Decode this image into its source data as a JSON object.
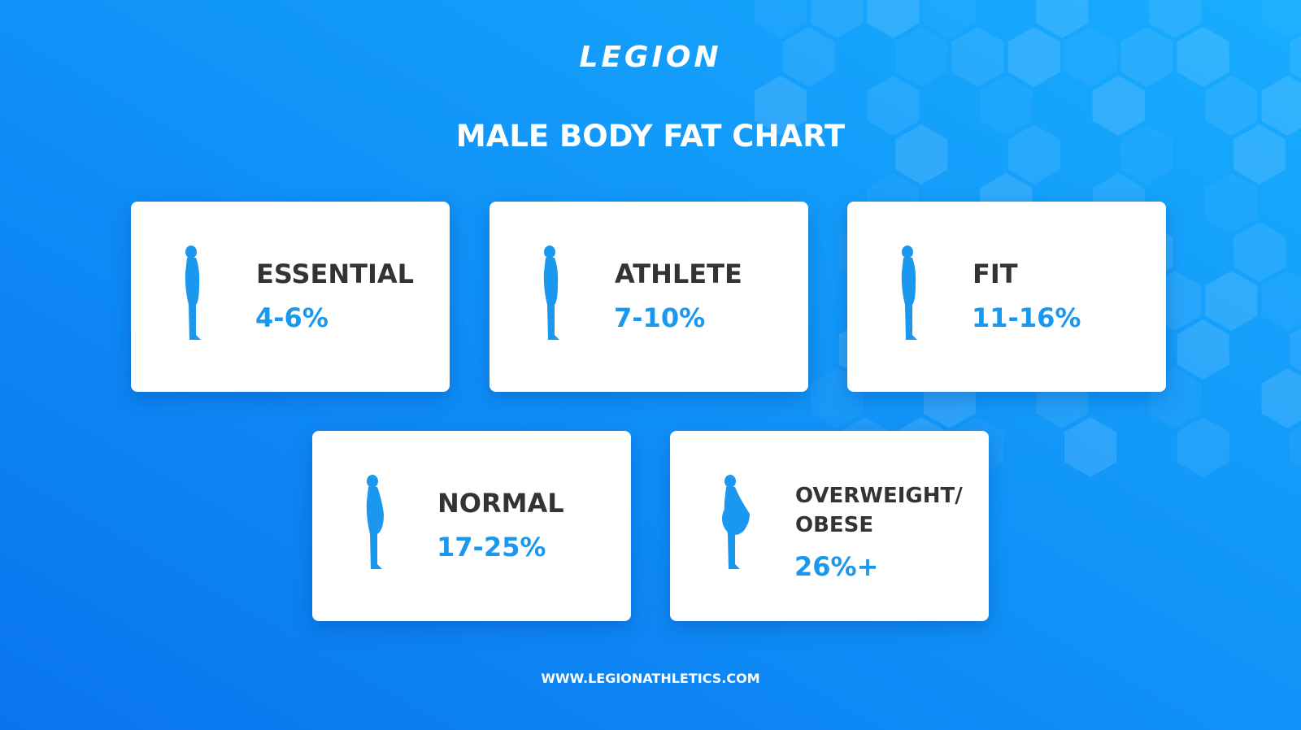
{
  "logo": "LEGION",
  "title": "MALE BODY FAT CHART",
  "cards": [
    {
      "label": "ESSENTIAL",
      "range": "4-6%"
    },
    {
      "label": "ATHLETE",
      "range": "7-10%"
    },
    {
      "label": "FIT",
      "range": "11-16%"
    },
    {
      "label": "NORMAL",
      "range": "17-25%"
    },
    {
      "label": "OVERWEIGHT/ OBESE",
      "range": "26%+"
    }
  ],
  "footer": "WWW.LEGIONATHLETICS.COM"
}
